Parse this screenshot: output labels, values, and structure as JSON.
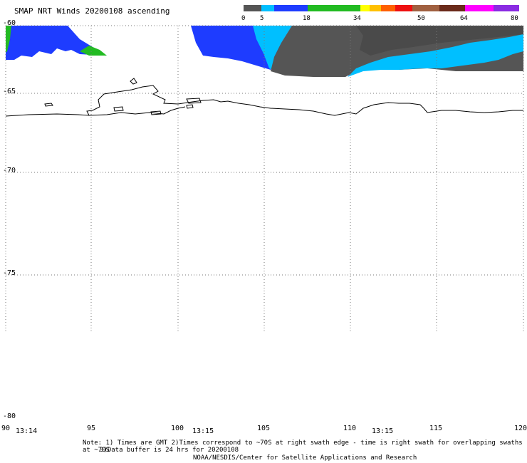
{
  "title": "SMAP NRT Winds 20200108 ascending",
  "colorbar": {
    "segments": [
      {
        "from": 0,
        "to": 5,
        "color": "#555555"
      },
      {
        "from": 5,
        "to": 8,
        "color": "#00bfff"
      },
      {
        "from": 8,
        "to": 18,
        "color": "#1e3cff"
      },
      {
        "from": 18,
        "to": 34,
        "color": "#22bb22"
      },
      {
        "from": 34,
        "to": 38,
        "color": "#ffff00"
      },
      {
        "from": 38,
        "to": 42,
        "color": "#ffc000"
      },
      {
        "from": 42,
        "to": 46,
        "color": "#ff6000"
      },
      {
        "from": 46,
        "to": 50,
        "color": "#ee1010"
      },
      {
        "from": 50,
        "to": 57,
        "color": "#a06040"
      },
      {
        "from": 57,
        "to": 64,
        "color": "#6a2a1a"
      },
      {
        "from": 64,
        "to": 72,
        "color": "#ff00ff"
      },
      {
        "from": 72,
        "to": 80,
        "color": "#8a2be2"
      }
    ],
    "tick_labels": [
      "0",
      "5",
      "18",
      "34",
      "50",
      "64",
      "80"
    ]
  },
  "map": {
    "lat_labels": [
      "-60",
      "-65",
      "-70",
      "-75",
      "-80"
    ],
    "lon_labels": [
      "90",
      "95",
      "100",
      "105",
      "110",
      "115",
      "120"
    ],
    "time_labels": [
      "13:14",
      "13:15",
      "13:15"
    ]
  },
  "notes": {
    "line1": "Note: 1) Times are GMT 2)Times correspond to ~70S at right swath edge - time is right swath for overlapping swaths at ~70S",
    "line2": "3)Data buffer is 24 hrs for 20200108",
    "line3": "NOAA/NESDIS/Center for Satellite Applications and Research"
  },
  "colors": {
    "land": "#ffffff",
    "coast": "#000000",
    "grid": "#777777"
  }
}
